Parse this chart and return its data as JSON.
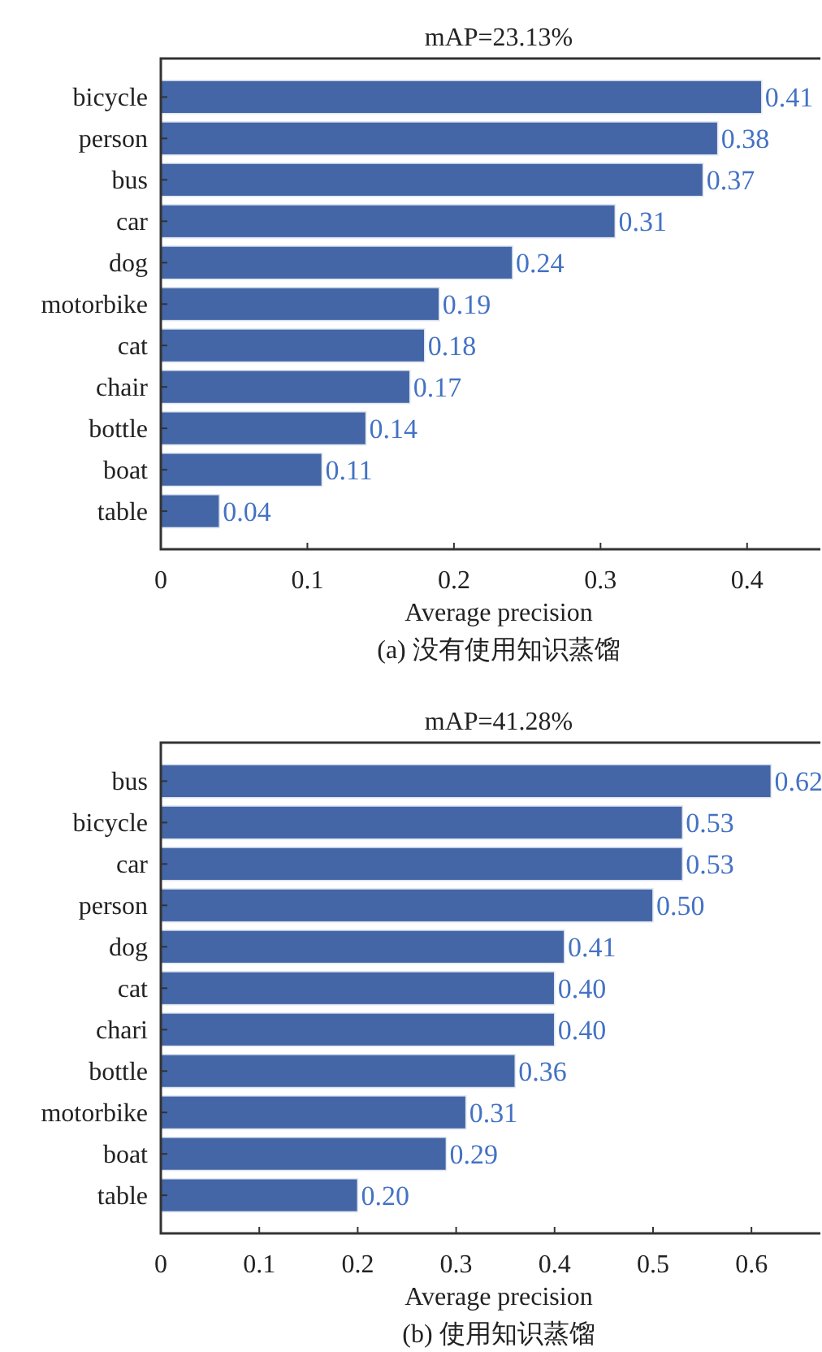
{
  "chart_data": [
    {
      "type": "bar",
      "orientation": "horizontal",
      "title": "mAP=23.13%",
      "xlabel": "Average precision",
      "categories": [
        "bicycle",
        "person",
        "bus",
        "car",
        "dog",
        "motorbike",
        "cat",
        "chair",
        "bottle",
        "boat",
        "table"
      ],
      "values": [
        0.41,
        0.38,
        0.37,
        0.31,
        0.24,
        0.19,
        0.18,
        0.17,
        0.14,
        0.11,
        0.04
      ],
      "value_labels": [
        "0.41",
        "0.38",
        "0.37",
        "0.31",
        "0.24",
        "0.19",
        "0.18",
        "0.17",
        "0.14",
        "0.11",
        "0.04"
      ],
      "color": "#4466a6",
      "xlim": [
        0,
        0.45
      ],
      "xticks": [
        0,
        0.1,
        0.2,
        0.3,
        0.4
      ],
      "annotations": [
        "(a) 没有使用知识蒸馏"
      ]
    },
    {
      "type": "bar",
      "orientation": "horizontal",
      "title": "mAP=41.28%",
      "xlabel": "Average precision",
      "categories": [
        "bus",
        "bicycle",
        "car",
        "person",
        "dog",
        "cat",
        "chari",
        "bottle",
        "motorbike",
        "boat",
        "table"
      ],
      "values": [
        0.62,
        0.53,
        0.53,
        0.5,
        0.41,
        0.4,
        0.4,
        0.36,
        0.31,
        0.29,
        0.2
      ],
      "value_labels": [
        "0.62",
        "0.53",
        "0.53",
        "0.50",
        "0.41",
        "0.40",
        "0.40",
        "0.36",
        "0.31",
        "0.29",
        "0.20"
      ],
      "color": "#4466a6",
      "xlim": [
        0,
        0.67
      ],
      "xticks": [
        0,
        0.1,
        0.2,
        0.3,
        0.4,
        0.5,
        0.6
      ],
      "annotations": [
        "(b) 使用知识蒸馏"
      ]
    }
  ]
}
